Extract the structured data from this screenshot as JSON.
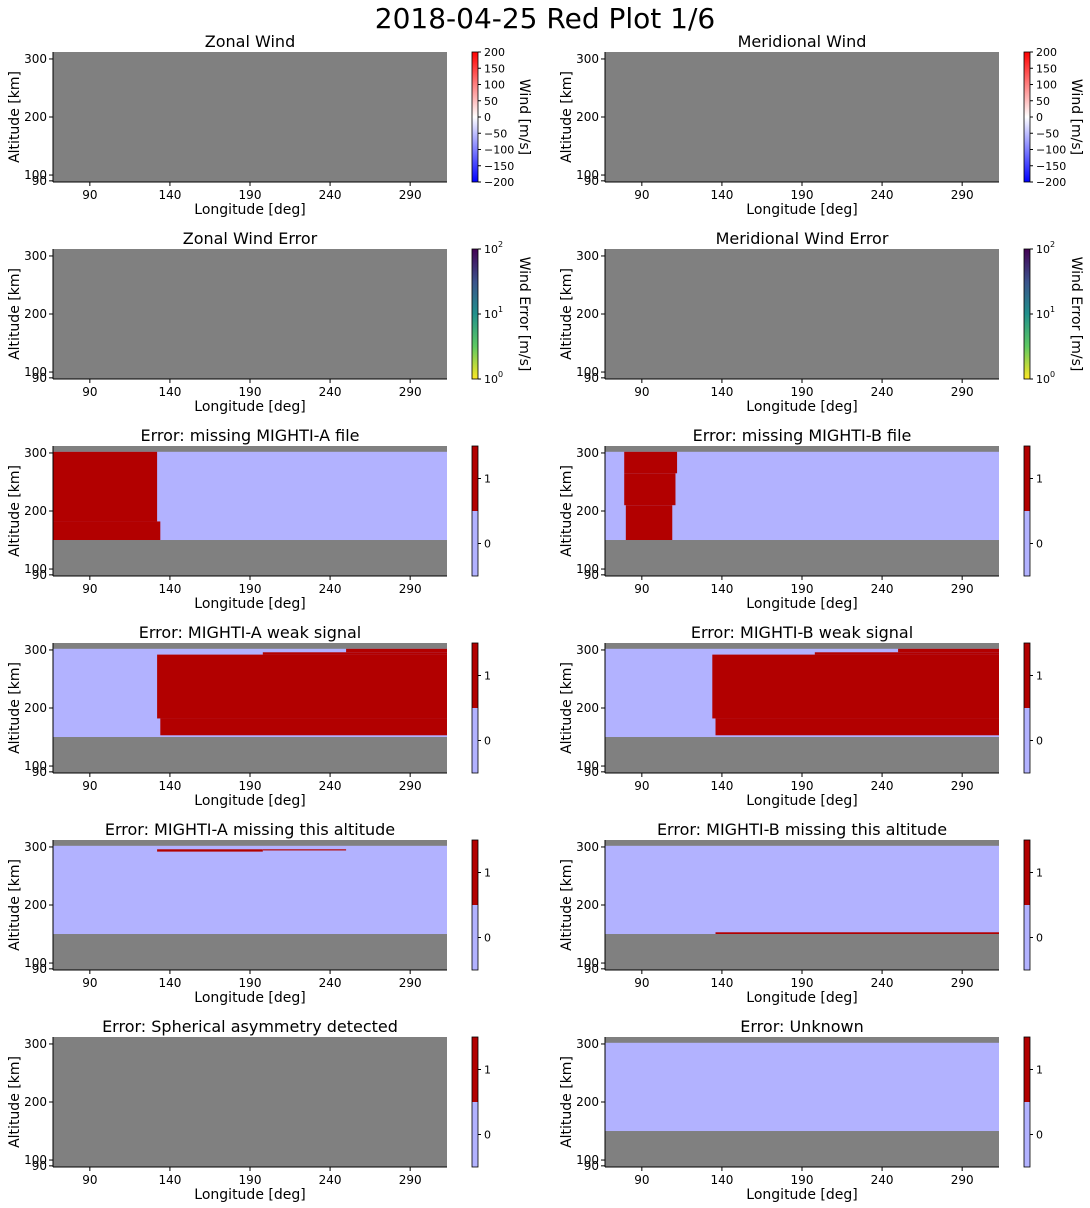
{
  "figure_title": "2018-04-25 Red Plot 1/6",
  "colors": {
    "nodata": "#808080",
    "flag_on": "#b20000",
    "flag_off": "#b2b2ff"
  },
  "chart_data": [
    {
      "type": "heatmap",
      "title": "Zonal Wind",
      "xlabel": "Longitude [deg]",
      "ylabel": "Altitude [km]",
      "xticks": [
        90,
        140,
        190,
        240,
        290
      ],
      "yticks": [
        90,
        100,
        200,
        300
      ],
      "xlim": [
        67,
        313
      ],
      "ylim": [
        88,
        312
      ],
      "colorbar": {
        "kind": "diverging",
        "label": "Wind [m/s]",
        "ticks": [
          "200",
          "150",
          "100",
          "50",
          "0",
          "−50",
          "−100",
          "−150",
          "−200"
        ]
      },
      "regions": []
    },
    {
      "type": "heatmap",
      "title": "Meridional Wind",
      "xlabel": "Longitude [deg]",
      "ylabel": "Altitude [km]",
      "xticks": [
        90,
        140,
        190,
        240,
        290
      ],
      "yticks": [
        90,
        100,
        200,
        300
      ],
      "xlim": [
        67,
        313
      ],
      "ylim": [
        88,
        312
      ],
      "colorbar": {
        "kind": "diverging",
        "label": "Wind [m/s]",
        "ticks": [
          "200",
          "150",
          "100",
          "50",
          "0",
          "−50",
          "−100",
          "−150",
          "−200"
        ]
      },
      "regions": []
    },
    {
      "type": "heatmap",
      "title": "Zonal Wind Error",
      "xlabel": "Longitude [deg]",
      "ylabel": "Altitude [km]",
      "xticks": [
        90,
        140,
        190,
        240,
        290
      ],
      "yticks": [
        90,
        100,
        200,
        300
      ],
      "xlim": [
        67,
        313
      ],
      "ylim": [
        88,
        312
      ],
      "colorbar": {
        "kind": "log",
        "label": "Wind Error [m/s]",
        "ticks": [
          "10",
          "10",
          "10"
        ],
        "exponents": [
          "2",
          "1",
          "0"
        ]
      },
      "regions": []
    },
    {
      "type": "heatmap",
      "title": "Meridional Wind Error",
      "xlabel": "Longitude [deg]",
      "ylabel": "Altitude [km]",
      "xticks": [
        90,
        140,
        190,
        240,
        290
      ],
      "yticks": [
        90,
        100,
        200,
        300
      ],
      "xlim": [
        67,
        313
      ],
      "ylim": [
        88,
        312
      ],
      "colorbar": {
        "kind": "log",
        "label": "Wind Error [m/s]",
        "ticks": [
          "10",
          "10",
          "10"
        ],
        "exponents": [
          "2",
          "1",
          "0"
        ]
      },
      "regions": []
    },
    {
      "type": "heatmap",
      "title": "Error: missing MIGHTI-A file",
      "xlabel": "Longitude [deg]",
      "ylabel": "Altitude [km]",
      "xticks": [
        90,
        140,
        190,
        240,
        290
      ],
      "yticks": [
        90,
        100,
        200,
        300
      ],
      "xlim": [
        67,
        313
      ],
      "ylim": [
        88,
        312
      ],
      "colorbar": {
        "kind": "flag",
        "label": "",
        "ticks": [
          "1",
          "0"
        ]
      },
      "regions": [
        {
          "lon": [
            67,
            313
          ],
          "alt": [
            150,
            302
          ],
          "value": 0
        },
        {
          "lon": [
            67,
            132
          ],
          "alt": [
            182,
            302
          ],
          "value": 1
        },
        {
          "lon": [
            67,
            134
          ],
          "alt": [
            150,
            182
          ],
          "value": 1
        }
      ]
    },
    {
      "type": "heatmap",
      "title": "Error: missing MIGHTI-B file",
      "xlabel": "Longitude [deg]",
      "ylabel": "Altitude [km]",
      "xticks": [
        90,
        140,
        190,
        240,
        290
      ],
      "yticks": [
        90,
        100,
        200,
        300
      ],
      "xlim": [
        67,
        313
      ],
      "ylim": [
        88,
        312
      ],
      "colorbar": {
        "kind": "flag",
        "label": "",
        "ticks": [
          "1",
          "0"
        ]
      },
      "regions": [
        {
          "lon": [
            67,
            313
          ],
          "alt": [
            150,
            302
          ],
          "value": 0
        },
        {
          "lon": [
            79,
            112
          ],
          "alt": [
            265,
            302
          ],
          "value": 1
        },
        {
          "lon": [
            79,
            111
          ],
          "alt": [
            210,
            265
          ],
          "value": 1
        },
        {
          "lon": [
            80,
            109
          ],
          "alt": [
            150,
            210
          ],
          "value": 1
        }
      ]
    },
    {
      "type": "heatmap",
      "title": "Error: MIGHTI-A weak signal",
      "xlabel": "Longitude [deg]",
      "ylabel": "Altitude [km]",
      "xticks": [
        90,
        140,
        190,
        240,
        290
      ],
      "yticks": [
        90,
        100,
        200,
        300
      ],
      "xlim": [
        67,
        313
      ],
      "ylim": [
        88,
        312
      ],
      "colorbar": {
        "kind": "flag",
        "label": "",
        "ticks": [
          "1",
          "0"
        ]
      },
      "regions": [
        {
          "lon": [
            67,
            313
          ],
          "alt": [
            150,
            302
          ],
          "value": 0
        },
        {
          "lon": [
            132,
            313
          ],
          "alt": [
            182,
            292
          ],
          "value": 1
        },
        {
          "lon": [
            134,
            313
          ],
          "alt": [
            153,
            182
          ],
          "value": 1
        },
        {
          "lon": [
            198,
            313
          ],
          "alt": [
            292,
            296
          ],
          "value": 1
        },
        {
          "lon": [
            250,
            313
          ],
          "alt": [
            296,
            302
          ],
          "value": 1
        }
      ]
    },
    {
      "type": "heatmap",
      "title": "Error: MIGHTI-B weak signal",
      "xlabel": "Longitude [deg]",
      "ylabel": "Altitude [km]",
      "xticks": [
        90,
        140,
        190,
        240,
        290
      ],
      "yticks": [
        90,
        100,
        200,
        300
      ],
      "xlim": [
        67,
        313
      ],
      "ylim": [
        88,
        312
      ],
      "colorbar": {
        "kind": "flag",
        "label": "",
        "ticks": [
          "1",
          "0"
        ]
      },
      "regions": [
        {
          "lon": [
            67,
            313
          ],
          "alt": [
            150,
            302
          ],
          "value": 0
        },
        {
          "lon": [
            134,
            313
          ],
          "alt": [
            182,
            292
          ],
          "value": 1
        },
        {
          "lon": [
            136,
            313
          ],
          "alt": [
            153,
            182
          ],
          "value": 1
        },
        {
          "lon": [
            198,
            313
          ],
          "alt": [
            292,
            296
          ],
          "value": 1
        },
        {
          "lon": [
            250,
            313
          ],
          "alt": [
            296,
            302
          ],
          "value": 1
        }
      ]
    },
    {
      "type": "heatmap",
      "title": "Error: MIGHTI-A missing this altitude",
      "xlabel": "Longitude [deg]",
      "ylabel": "Altitude [km]",
      "xticks": [
        90,
        140,
        190,
        240,
        290
      ],
      "yticks": [
        90,
        100,
        200,
        300
      ],
      "xlim": [
        67,
        313
      ],
      "ylim": [
        88,
        312
      ],
      "colorbar": {
        "kind": "flag",
        "label": "",
        "ticks": [
          "1",
          "0"
        ]
      },
      "regions": [
        {
          "lon": [
            67,
            313
          ],
          "alt": [
            150,
            302
          ],
          "value": 0
        },
        {
          "lon": [
            132,
            198
          ],
          "alt": [
            292,
            296
          ],
          "value": 1
        },
        {
          "lon": [
            198,
            250
          ],
          "alt": [
            294,
            296
          ],
          "value": 1
        }
      ]
    },
    {
      "type": "heatmap",
      "title": "Error: MIGHTI-B missing this altitude",
      "xlabel": "Longitude [deg]",
      "ylabel": "Altitude [km]",
      "xticks": [
        90,
        140,
        190,
        240,
        290
      ],
      "yticks": [
        90,
        100,
        200,
        300
      ],
      "xlim": [
        67,
        313
      ],
      "ylim": [
        88,
        312
      ],
      "colorbar": {
        "kind": "flag",
        "label": "",
        "ticks": [
          "1",
          "0"
        ]
      },
      "regions": [
        {
          "lon": [
            67,
            313
          ],
          "alt": [
            150,
            302
          ],
          "value": 0
        },
        {
          "lon": [
            136,
            313
          ],
          "alt": [
            150,
            153
          ],
          "value": 1
        }
      ]
    },
    {
      "type": "heatmap",
      "title": "Error: Spherical asymmetry detected",
      "xlabel": "Longitude [deg]",
      "ylabel": "Altitude [km]",
      "xticks": [
        90,
        140,
        190,
        240,
        290
      ],
      "yticks": [
        90,
        100,
        200,
        300
      ],
      "xlim": [
        67,
        313
      ],
      "ylim": [
        88,
        312
      ],
      "colorbar": {
        "kind": "flag",
        "label": "",
        "ticks": [
          "1",
          "0"
        ]
      },
      "regions": []
    },
    {
      "type": "heatmap",
      "title": "Error: Unknown",
      "xlabel": "Longitude [deg]",
      "ylabel": "Altitude [km]",
      "xticks": [
        90,
        140,
        190,
        240,
        290
      ],
      "yticks": [
        90,
        100,
        200,
        300
      ],
      "xlim": [
        67,
        313
      ],
      "ylim": [
        88,
        312
      ],
      "colorbar": {
        "kind": "flag",
        "label": "",
        "ticks": [
          "1",
          "0"
        ]
      },
      "regions": [
        {
          "lon": [
            67,
            313
          ],
          "alt": [
            150,
            302
          ],
          "value": 0
        }
      ]
    }
  ]
}
